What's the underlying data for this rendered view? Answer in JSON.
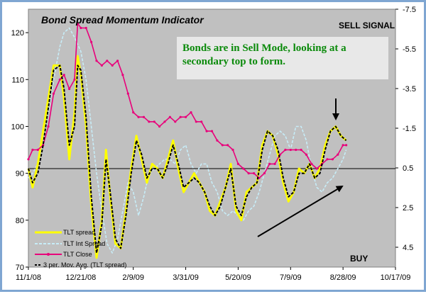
{
  "colors": {
    "plot_background": "#c0c0c0",
    "tlt_spread": "#ffff00",
    "tlt_int_spread": "#c7ecf7",
    "tlt_close": "#e8007a",
    "mov_avg": "#000000",
    "note_text": "#0a8a0a",
    "note_box": "#e8e8e8"
  },
  "chart_data": {
    "type": "line",
    "title": "Bond Spread Momentum Indicator",
    "x_tick_labels": [
      "11/1/08",
      "12/21/08",
      "2/9/09",
      "3/31/09",
      "5/20/09",
      "7/9/09",
      "8/28/09",
      "10/17/09"
    ],
    "x_range": [
      "11/1/08",
      "10/17/09"
    ],
    "y_left": {
      "ticks": [
        70,
        80,
        90,
        100,
        110,
        120
      ],
      "range": [
        70,
        125
      ]
    },
    "y_right": {
      "ticks": [
        "-7.5",
        "-5.5",
        "-3.5",
        "-1.5",
        "0.5",
        "2.5",
        "4.5"
      ],
      "range": [
        -7.5,
        5.5
      ],
      "inverted": true
    },
    "reference_line_left_value": 91,
    "annotations": {
      "sell_signal": "SELL SIGNAL",
      "buy": "BUY",
      "note": [
        "Bonds are in Sell Mode, looking at a",
        "secondary top to form."
      ]
    },
    "legend": [
      "TLT spread",
      "TLT Int Spread",
      "TLT Close",
      "3 per. Mov. Avg. (TLT spread)"
    ],
    "grid": false,
    "series": [
      {
        "name": "TLT spread",
        "axis": "left",
        "x": [
          "11/1/08",
          "11/5/08",
          "11/10/08",
          "11/15/08",
          "11/20/08",
          "11/25/08",
          "12/1/08",
          "12/5/08",
          "12/10/08",
          "12/15/08",
          "12/18/08",
          "12/21/08",
          "12/26/08",
          "12/31/08",
          "1/5/09",
          "1/10/09",
          "1/14/09",
          "1/18/09",
          "1/23/09",
          "1/28/09",
          "2/2/09",
          "2/7/09",
          "2/12/09",
          "2/17/09",
          "2/22/09",
          "2/27/09",
          "3/4/09",
          "3/9/09",
          "3/14/09",
          "3/19/09",
          "3/24/09",
          "3/29/09",
          "4/3/09",
          "4/8/09",
          "4/13/09",
          "4/18/09",
          "4/23/09",
          "4/28/09",
          "5/3/09",
          "5/8/09",
          "5/13/09",
          "5/18/09",
          "5/23/09",
          "5/28/09",
          "6/2/09",
          "6/7/09",
          "6/12/09",
          "6/17/09",
          "6/22/09",
          "6/27/09",
          "7/2/09",
          "7/7/09",
          "7/12/09",
          "7/17/09",
          "7/22/09",
          "7/27/09",
          "8/1/09",
          "8/6/09",
          "8/11/09",
          "8/16/09",
          "8/21/09",
          "8/26/09",
          "8/31/09"
        ],
        "values": [
          91,
          87,
          92,
          99,
          106,
          113,
          113,
          106,
          93,
          103,
          115,
          111,
          100,
          83,
          72,
          80,
          95,
          85,
          75,
          74,
          82,
          91,
          98,
          93,
          88,
          92,
          91,
          89,
          93,
          97,
          91,
          86,
          88,
          90,
          88,
          86,
          82,
          81,
          84,
          87,
          92,
          82,
          80,
          86,
          87,
          88,
          96,
          99,
          98,
          94,
          88,
          84,
          86,
          91,
          90,
          92,
          89,
          91,
          96,
          99,
          100,
          98,
          97
        ]
      },
      {
        "name": "TLT Int Spread",
        "axis": "left",
        "x": [
          "11/1/08",
          "11/5/08",
          "11/10/08",
          "11/15/08",
          "11/20/08",
          "11/25/08",
          "12/1/08",
          "12/5/08",
          "12/10/08",
          "12/15/08",
          "12/21/08",
          "12/26/08",
          "12/31/08",
          "1/5/09",
          "1/10/09",
          "1/15/09",
          "1/20/09",
          "1/25/09",
          "1/30/09",
          "2/4/09",
          "2/9/09",
          "2/14/09",
          "2/19/09",
          "2/24/09",
          "3/1/09",
          "3/6/09",
          "3/11/09",
          "3/16/09",
          "3/21/09",
          "3/26/09",
          "3/31/09",
          "4/5/09",
          "4/10/09",
          "4/15/09",
          "4/20/09",
          "4/25/09",
          "4/30/09",
          "5/5/09",
          "5/10/09",
          "5/15/09",
          "5/20/09",
          "5/25/09",
          "5/30/09",
          "6/4/09",
          "6/9/09",
          "6/14/09",
          "6/19/09",
          "6/24/09",
          "6/29/09",
          "7/4/09",
          "7/9/09",
          "7/14/09",
          "7/19/09",
          "7/24/09",
          "7/29/09",
          "8/3/09",
          "8/8/09",
          "8/13/09",
          "8/18/09",
          "8/23/09",
          "8/28/09",
          "8/31/09"
        ],
        "values": [
          89,
          90,
          92,
          96,
          103,
          110,
          117,
          120,
          121,
          119,
          116,
          110,
          100,
          90,
          82,
          75,
          73,
          76,
          82,
          88,
          86,
          81,
          85,
          90,
          91,
          92,
          93,
          93,
          92,
          95,
          96,
          92,
          90,
          92,
          92,
          88,
          86,
          82,
          81,
          82,
          81,
          80,
          82,
          83,
          86,
          90,
          94,
          98,
          99,
          98,
          95,
          100,
          100,
          97,
          91,
          87,
          86,
          88,
          89,
          91,
          93,
          95
        ]
      },
      {
        "name": "TLT Close",
        "axis": "left",
        "x": [
          "11/1/08",
          "11/5/08",
          "11/10/08",
          "11/15/08",
          "11/20/08",
          "11/25/08",
          "12/1/08",
          "12/5/08",
          "12/10/08",
          "12/15/08",
          "12/18/08",
          "12/21/08",
          "12/26/08",
          "12/31/08",
          "1/5/09",
          "1/10/09",
          "1/15/09",
          "1/20/09",
          "1/25/09",
          "1/30/09",
          "2/4/09",
          "2/9/09",
          "2/14/09",
          "2/19/09",
          "2/24/09",
          "3/1/09",
          "3/6/09",
          "3/11/09",
          "3/16/09",
          "3/21/09",
          "3/26/09",
          "3/31/09",
          "4/5/09",
          "4/10/09",
          "4/15/09",
          "4/20/09",
          "4/25/09",
          "4/30/09",
          "5/5/09",
          "5/10/09",
          "5/15/09",
          "5/20/09",
          "5/25/09",
          "5/30/09",
          "6/4/09",
          "6/9/09",
          "6/14/09",
          "6/19/09",
          "6/24/09",
          "6/29/09",
          "7/4/09",
          "7/9/09",
          "7/14/09",
          "7/19/09",
          "7/24/09",
          "7/29/09",
          "8/3/09",
          "8/8/09",
          "8/13/09",
          "8/18/09",
          "8/23/09",
          "8/28/09",
          "8/31/09"
        ],
        "values": [
          93,
          95,
          95,
          96,
          100,
          107,
          110,
          111,
          108,
          110,
          122,
          121,
          121,
          118,
          114,
          113,
          114,
          113,
          114,
          111,
          107,
          103,
          102,
          102,
          101,
          101,
          100,
          101,
          102,
          101,
          102,
          102,
          103,
          101,
          101,
          99,
          99,
          97,
          96,
          96,
          95,
          92,
          91,
          90,
          90,
          89,
          90,
          92,
          92,
          94,
          95,
          95,
          95,
          95,
          94,
          92,
          91,
          92,
          93,
          93,
          94,
          96,
          96
        ]
      },
      {
        "name": "3 per. Mov. Avg. (TLT spread)",
        "axis": "left",
        "x": [
          "11/1/08",
          "11/5/08",
          "11/10/08",
          "11/15/08",
          "11/20/08",
          "11/25/08",
          "12/1/08",
          "12/5/08",
          "12/10/08",
          "12/15/08",
          "12/18/08",
          "12/21/08",
          "12/26/08",
          "12/31/08",
          "1/5/09",
          "1/10/09",
          "1/14/09",
          "1/18/09",
          "1/23/09",
          "1/28/09",
          "2/2/09",
          "2/7/09",
          "2/12/09",
          "2/17/09",
          "2/22/09",
          "2/27/09",
          "3/4/09",
          "3/9/09",
          "3/14/09",
          "3/19/09",
          "3/24/09",
          "3/29/09",
          "4/3/09",
          "4/8/09",
          "4/13/09",
          "4/18/09",
          "4/23/09",
          "4/28/09",
          "5/3/09",
          "5/8/09",
          "5/13/09",
          "5/18/09",
          "5/23/09",
          "5/28/09",
          "6/2/09",
          "6/7/09",
          "6/12/09",
          "6/17/09",
          "6/22/09",
          "6/27/09",
          "7/2/09",
          "7/7/09",
          "7/12/09",
          "7/17/09",
          "7/22/09",
          "7/27/09",
          "8/1/09",
          "8/6/09",
          "8/11/09",
          "8/16/09",
          "8/21/09",
          "8/26/09",
          "8/31/09"
        ],
        "values": [
          91,
          88,
          90,
          96,
          104,
          112,
          113,
          108,
          96,
          100,
          113,
          112,
          102,
          85,
          73,
          79,
          93,
          86,
          76,
          74,
          81,
          90,
          97,
          94,
          89,
          91,
          91,
          89,
          92,
          96,
          92,
          87,
          88,
          89,
          88,
          86,
          83,
          81,
          83,
          87,
          91,
          83,
          81,
          85,
          87,
          88,
          95,
          99,
          98,
          95,
          89,
          85,
          86,
          90,
          90,
          92,
          89,
          90,
          95,
          99,
          100,
          98,
          97
        ]
      }
    ]
  }
}
